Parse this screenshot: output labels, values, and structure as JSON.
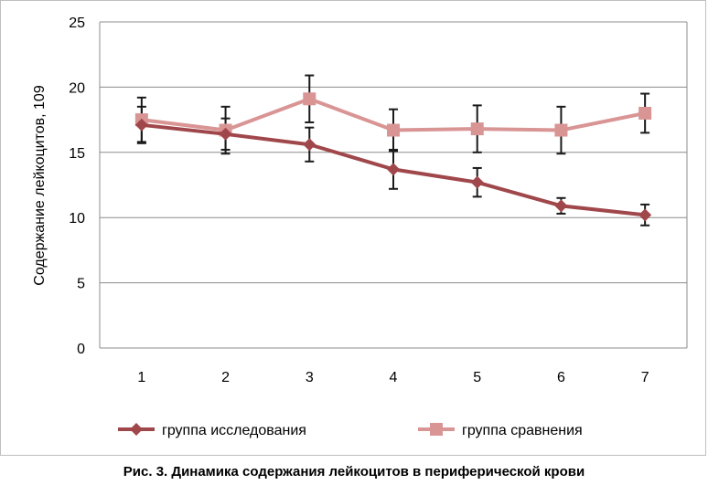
{
  "caption": "Рис. 3. Динамика содержания лейкоцитов в периферической крови",
  "chart_data": {
    "type": "line",
    "title": "",
    "xlabel": "",
    "ylabel": "Содержание лейкоцитов, 109",
    "categories": [
      "1",
      "2",
      "3",
      "4",
      "5",
      "6",
      "7"
    ],
    "ylim": [
      0,
      25
    ],
    "yticks": [
      "0",
      "5",
      "10",
      "15",
      "20",
      "25"
    ],
    "grid": true,
    "legend_position": "bottom",
    "series": [
      {
        "name": "группа исследования",
        "color": "#a0474b",
        "marker": "diamond",
        "values": [
          17.1,
          16.4,
          15.6,
          13.7,
          12.7,
          10.9,
          10.2
        ],
        "errors": [
          1.4,
          1.2,
          1.3,
          1.5,
          1.1,
          0.6,
          0.8
        ]
      },
      {
        "name": "группа сравнения",
        "color": "#d99494",
        "marker": "square",
        "values": [
          17.5,
          16.7,
          19.1,
          16.7,
          16.8,
          16.7,
          18.0
        ],
        "errors": [
          1.7,
          1.8,
          1.8,
          1.6,
          1.8,
          1.8,
          1.5
        ]
      }
    ]
  }
}
